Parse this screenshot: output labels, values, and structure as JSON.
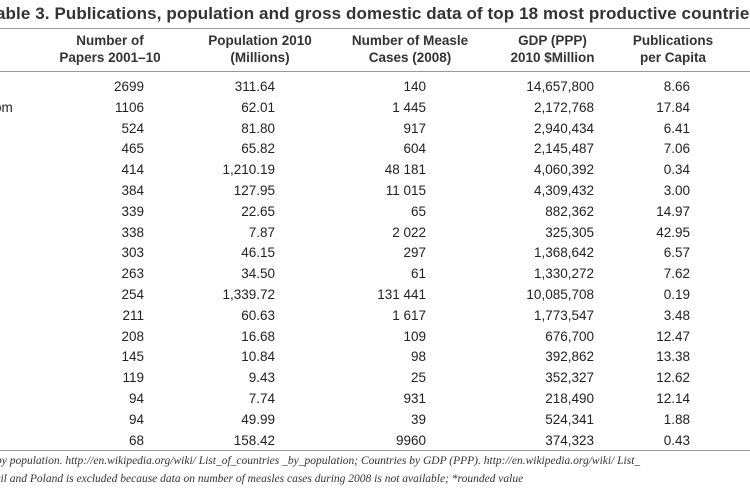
{
  "title": "able 3.  Publications, population and gross domestic data of top 18 most productive countrie",
  "headers": [
    [
      "Number of",
      "Papers 2001–10"
    ],
    [
      "Population 2010",
      "(Millions)"
    ],
    [
      "Number of Measle",
      "Cases (2008)"
    ],
    [
      "GDP (PPP)",
      "2010 $Million"
    ],
    [
      "Publications",
      "per Capita"
    ]
  ],
  "rows": [
    {
      "country": "",
      "papers": "2699",
      "population": "311.64",
      "measles": "140",
      "gdp": "14,657,800",
      "per_capita": "8.66"
    },
    {
      "country": "om",
      "papers": "1106",
      "population": "62.01",
      "measles": "1 445",
      "gdp": "2,172,768",
      "per_capita": "17.84"
    },
    {
      "country": "",
      "papers": "524",
      "population": "81.80",
      "measles": "917",
      "gdp": "2,940,434",
      "per_capita": "6.41"
    },
    {
      "country": "",
      "papers": "465",
      "population": "65.82",
      "measles": "604",
      "gdp": "2,145,487",
      "per_capita": "7.06"
    },
    {
      "country": "",
      "papers": "414",
      "population": "1,210.19",
      "measles": "48 181",
      "gdp": "4,060,392",
      "per_capita": "0.34"
    },
    {
      "country": "",
      "papers": "384",
      "population": "127.95",
      "measles": "11 015",
      "gdp": "4,309,432",
      "per_capita": "3.00"
    },
    {
      "country": "",
      "papers": "339",
      "population": "22.65",
      "measles": "65",
      "gdp": "882,362",
      "per_capita": "14.97"
    },
    {
      "country": "",
      "papers": "338",
      "population": "7.87",
      "measles": "2 022",
      "gdp": "325,305",
      "per_capita": "42.95"
    },
    {
      "country": "",
      "papers": "303",
      "population": "46.15",
      "measles": "297",
      "gdp": "1,368,642",
      "per_capita": "6.57"
    },
    {
      "country": "",
      "papers": "263",
      "population": "34.50",
      "measles": "61",
      "gdp": "1,330,272",
      "per_capita": "7.62"
    },
    {
      "country": "",
      "papers": "254",
      "population": "1,339.72",
      "measles": "131 441",
      "gdp": "10,085,708",
      "per_capita": "0.19"
    },
    {
      "country": "",
      "papers": "211",
      "population": "60.63",
      "measles": "1 617",
      "gdp": "1,773,547",
      "per_capita": "3.48"
    },
    {
      "country": "",
      "papers": "208",
      "population": "16.68",
      "measles": "109",
      "gdp": "676,700",
      "per_capita": "12.47"
    },
    {
      "country": "",
      "papers": "145",
      "population": "10.84",
      "measles": "98",
      "gdp": "392,862",
      "per_capita": "13.38"
    },
    {
      "country": "",
      "papers": "119",
      "population": "9.43",
      "measles": "25",
      "gdp": "352,327",
      "per_capita": "12.62"
    },
    {
      "country": "",
      "papers": "94",
      "population": "7.74",
      "measles": "931",
      "gdp": "218,490",
      "per_capita": "12.14"
    },
    {
      "country": "",
      "papers": "94",
      "population": "49.99",
      "measles": "39",
      "gdp": "524,341",
      "per_capita": "1.88"
    },
    {
      "country": "",
      "papers": "68",
      "population": "158.42",
      "measles": "9960",
      "gdp": "374,323",
      "per_capita": "0.43"
    }
  ],
  "footnotes": [
    "by population. http://en.wikipedia.org/wiki/ List_of_countries _by_population; Countries by GDP (PPP). http://en.wikipedia.org/wiki/ List_",
    "zil and Poland is excluded because data on number of measles cases during 2008 is not available; *rounded value"
  ]
}
